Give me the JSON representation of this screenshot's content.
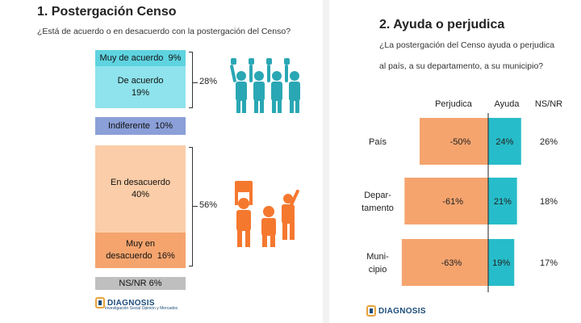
{
  "left": {
    "title": "1. Postergación Censo",
    "question": "¿Está de acuerdo o en desacuerdo con la postergación del Censo?",
    "rows": {
      "muy_acuerdo": "Muy de acuerdo  9%",
      "acuerdo_label": "De acuerdo",
      "acuerdo_value": "19%",
      "indiferente": "Indiferente  10%",
      "desacuerdo_label": "En desacuerdo",
      "desacuerdo_value": "40%",
      "muy_desacuerdo_line1": "Muy en",
      "muy_desacuerdo_line2": "desacuerdo  16%",
      "nsnr": "NS/NR 6%"
    },
    "total_agree": "28%",
    "total_disagree": "56%",
    "logo": "DIAGNOSIS",
    "logo_tagline": "Investigación Social Opinión y Mercados"
  },
  "right": {
    "title": "2. Ayuda o perjudica",
    "question_line1": "¿La postergación del Censo ayuda o perjudica",
    "question_line2": "al país, a su departamento, a su municipio?",
    "logo": "DIAGNOSIS"
  },
  "chart_data": [
    {
      "type": "bar",
      "title": "1. Postergación Censo",
      "categories": [
        "Muy de acuerdo",
        "De acuerdo",
        "Indiferente",
        "En desacuerdo",
        "Muy en desacuerdo",
        "NS/NR"
      ],
      "values": [
        9,
        19,
        10,
        40,
        16,
        6
      ],
      "groups": [
        {
          "name": "28%",
          "members": [
            "Muy de acuerdo",
            "De acuerdo"
          ],
          "value": 28
        },
        {
          "name": "56%",
          "members": [
            "En desacuerdo",
            "Muy en desacuerdo"
          ],
          "value": 56
        }
      ],
      "colors": {
        "Muy de acuerdo": "#5fd3e0",
        "De acuerdo": "#8ee3ec",
        "Indiferente": "#8b9fd8",
        "En desacuerdo": "#fbcda8",
        "Muy en desacuerdo": "#f5a46e",
        "NS/NR": "#bfbfbf"
      }
    },
    {
      "type": "bar",
      "orientation": "horizontal-diverging",
      "title": "2. Ayuda o perjudica",
      "column_headers": [
        "Perjudica",
        "Ayuda",
        "NS/NR"
      ],
      "categories": [
        "País",
        "Depar-\ntamento",
        "Muni-\ncipio"
      ],
      "series": [
        {
          "name": "Perjudica",
          "values": [
            -50,
            -61,
            -63
          ],
          "labels": [
            "-50%",
            "-61%",
            "-63%"
          ],
          "color": "#f5a46e"
        },
        {
          "name": "Ayuda",
          "values": [
            24,
            21,
            19
          ],
          "labels": [
            "24%",
            "21%",
            "19%"
          ],
          "color": "#27bcc9"
        }
      ],
      "nsnr": [
        "26%",
        "18%",
        "17%"
      ]
    }
  ]
}
